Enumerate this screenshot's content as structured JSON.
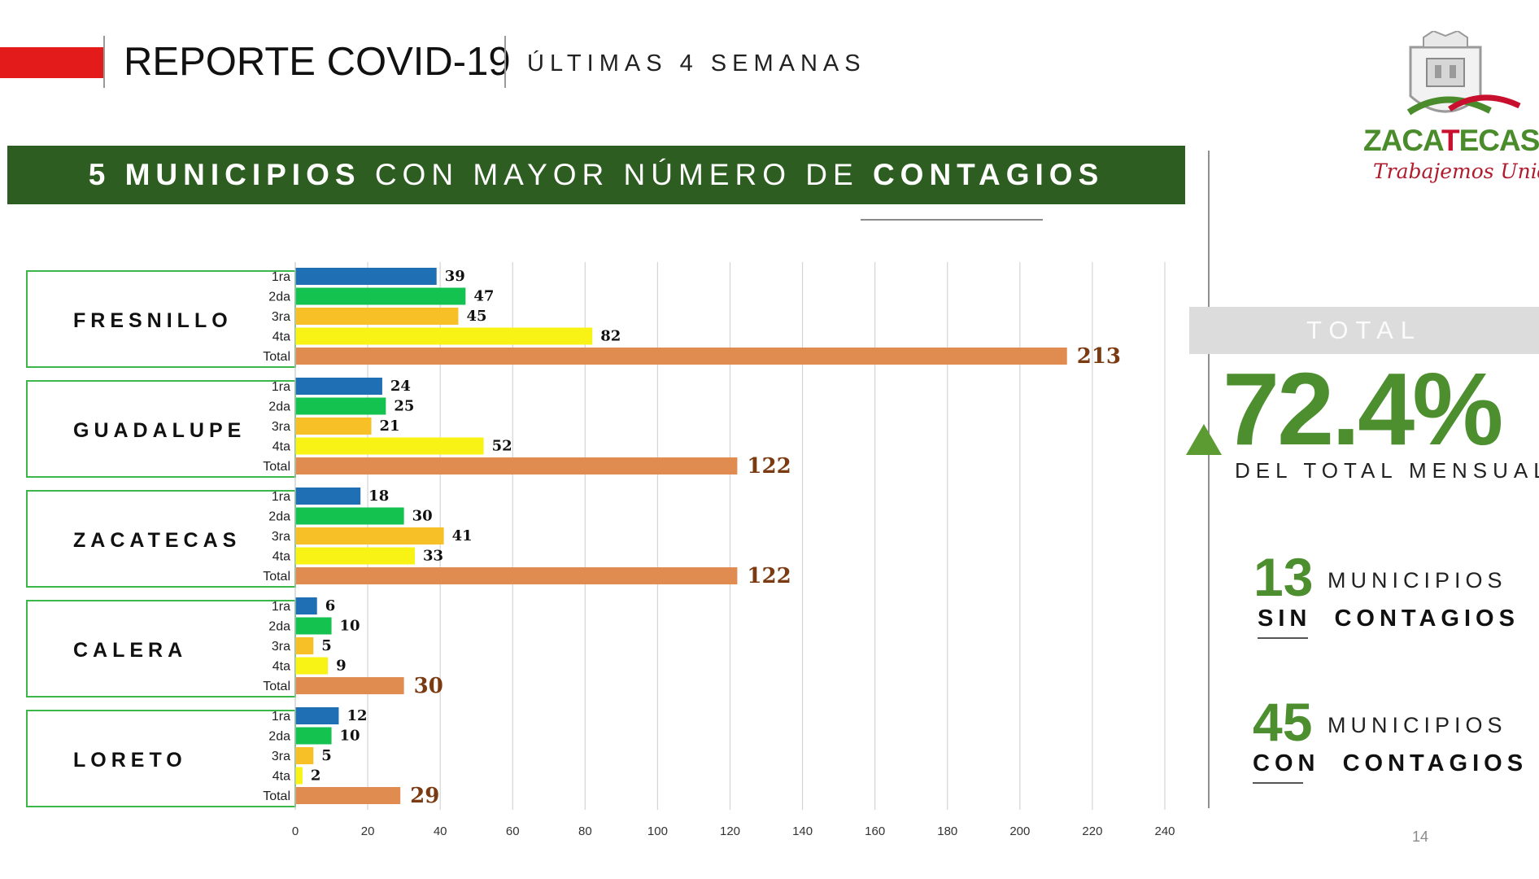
{
  "header": {
    "title": "REPORTE COVID-19",
    "subtitle": "ÚLTIMAS 4 SEMANAS"
  },
  "banner": {
    "part1": "5 MUNICIPIOS",
    "part2": "CON MAYOR NÚMERO DE",
    "part3": "CONTAGIOS"
  },
  "colors": {
    "accent_red": "#e31b1b",
    "banner_green": "#2e5d21",
    "stat_green": "#4d8f2f",
    "week1": "#1f6fb5",
    "week2": "#13c24f",
    "week3": "#f6c026",
    "week4": "#f8f314",
    "total": "#e08b4f",
    "total_label": "#7a3b12"
  },
  "chart_data": {
    "type": "bar",
    "orientation": "horizontal",
    "categories": [
      "1ra",
      "2da",
      "3ra",
      "4ta",
      "Total"
    ],
    "groups": [
      {
        "name": "FRESNILLO",
        "values": [
          39,
          47,
          45,
          82,
          213
        ]
      },
      {
        "name": "GUADALUPE",
        "values": [
          24,
          25,
          21,
          52,
          122
        ]
      },
      {
        "name": "ZACATECAS",
        "values": [
          18,
          30,
          41,
          33,
          122
        ]
      },
      {
        "name": "CALERA",
        "values": [
          6,
          10,
          5,
          9,
          30
        ]
      },
      {
        "name": "LORETO",
        "values": [
          12,
          10,
          5,
          2,
          29
        ]
      }
    ],
    "xlim": [
      0,
      240
    ],
    "xticks": [
      0,
      20,
      40,
      60,
      80,
      100,
      120,
      140,
      160,
      180,
      200,
      220,
      240
    ],
    "grid": true,
    "title": "",
    "xlabel": "",
    "ylabel": ""
  },
  "summary": {
    "total_label": "TOTAL",
    "percent": "72.4%",
    "percent_caption": "DEL TOTAL MENSUAL",
    "trend_icon": "up-triangle-icon",
    "sin_count": "13",
    "sin_word": "MUNICIPIOS",
    "sin_bold": "SIN",
    "sin_rest": "CONTAGIOS",
    "con_count": "45",
    "con_word": "MUNICIPIOS",
    "con_bold": "CON",
    "con_rest": "CONTAGIOS"
  },
  "logo": {
    "word_a": "ZACA",
    "word_b": "T",
    "word_c": "ECAS",
    "slogan": "Trabajemos Unidos",
    "icon": "coat-of-arms-icon"
  },
  "page_number": "14"
}
